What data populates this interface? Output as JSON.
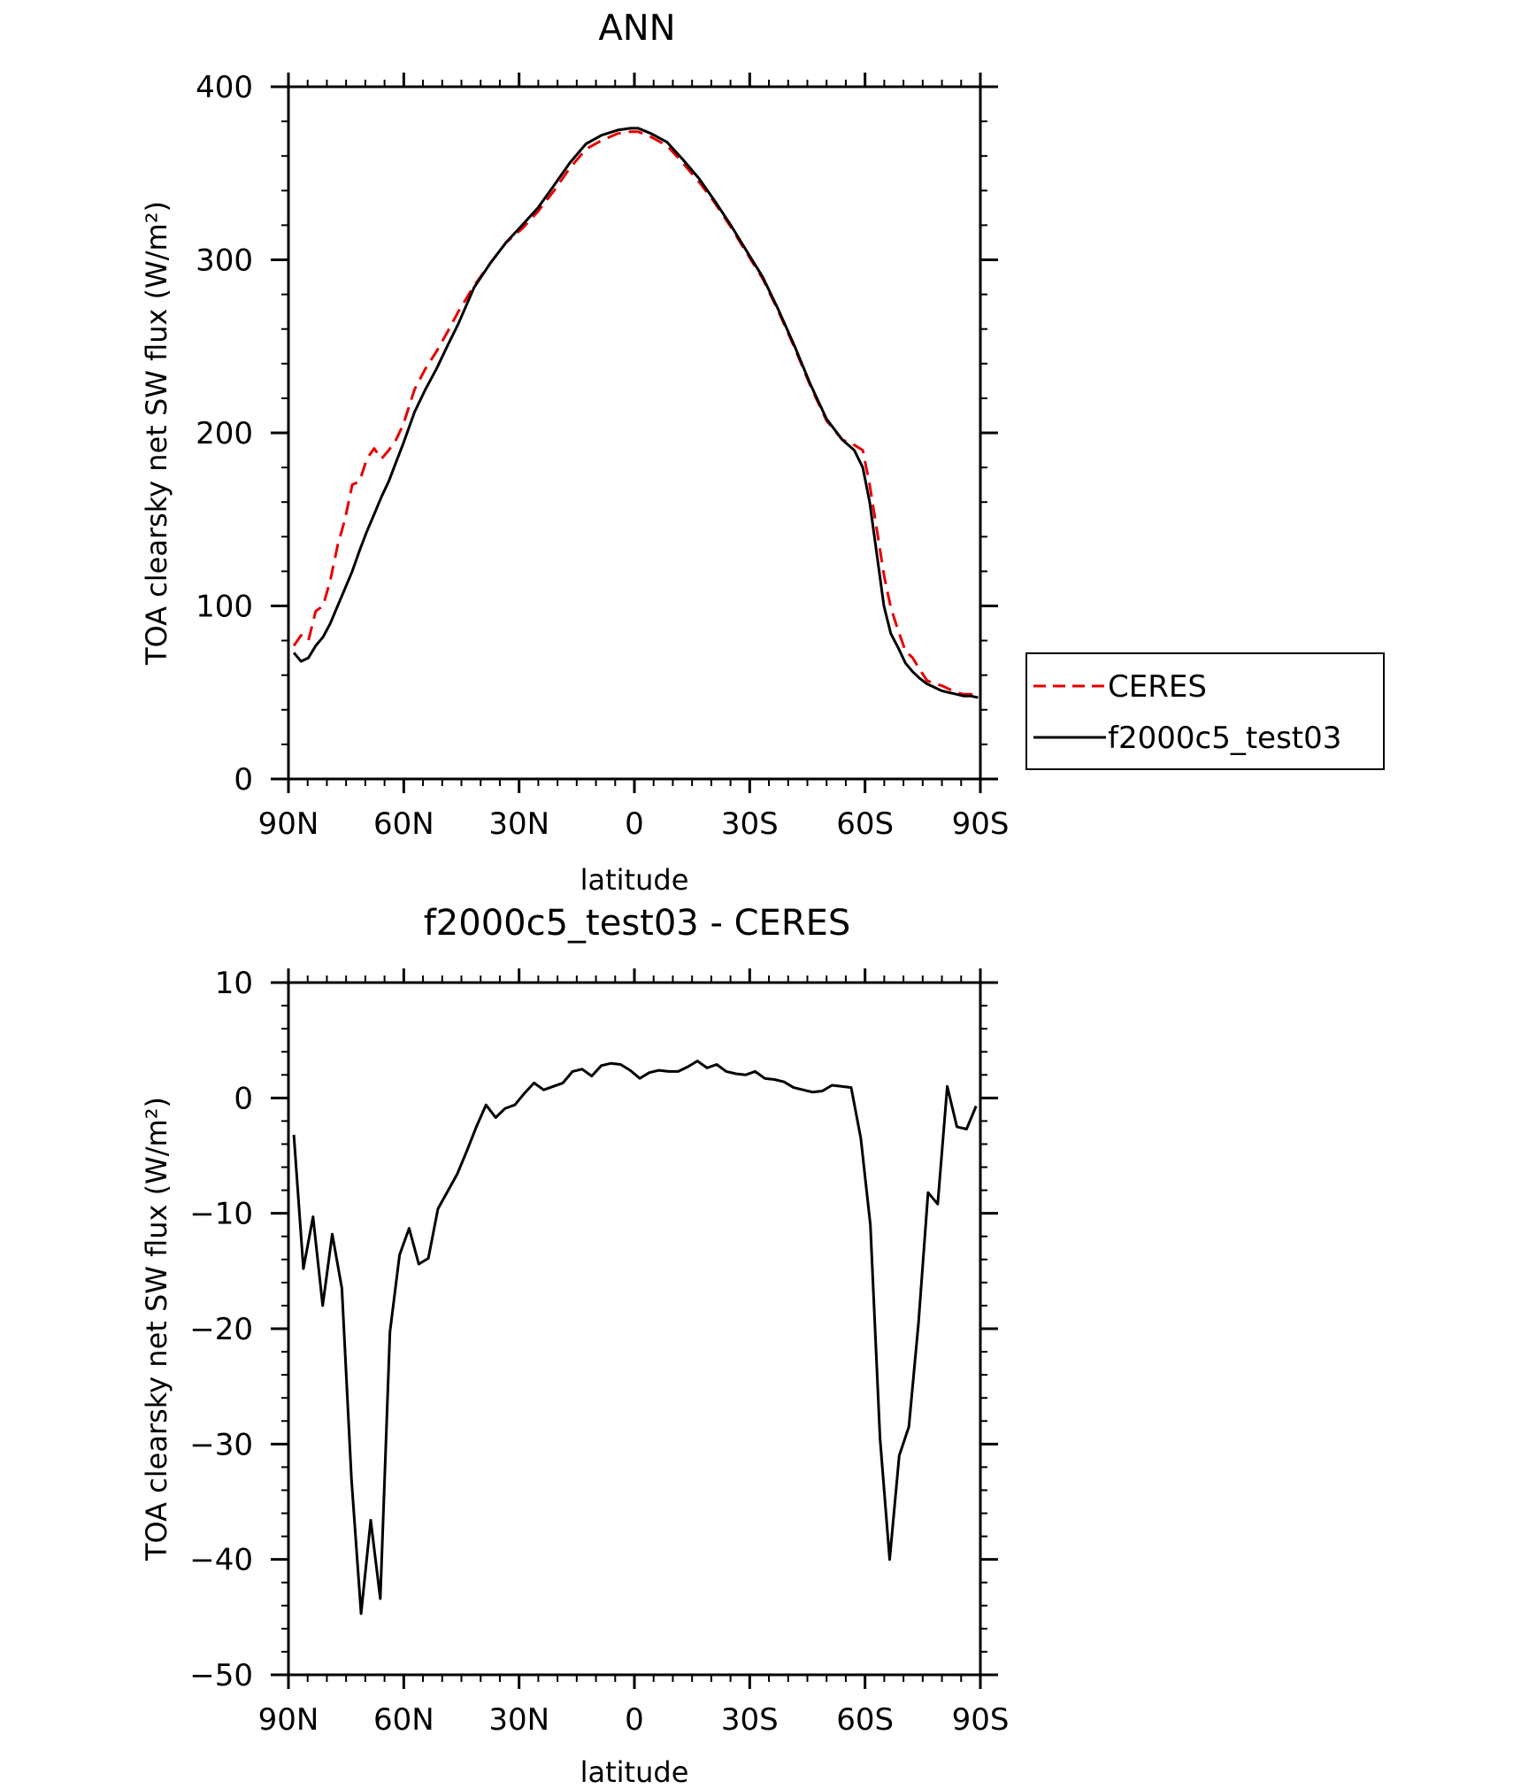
{
  "chart_data": [
    {
      "type": "line",
      "title": "ANN",
      "xlabel": "latitude",
      "ylabel": "TOA clearsky net SW flux (W/m²)",
      "xlim": [
        90,
        -90
      ],
      "ylim": [
        0,
        400
      ],
      "xticks": [
        90,
        60,
        30,
        0,
        -30,
        -60,
        -90
      ],
      "xtick_labels": [
        "90N",
        "60N",
        "30N",
        "0",
        "30S",
        "60S",
        "90S"
      ],
      "yticks": [
        0,
        100,
        200,
        300,
        400
      ],
      "ytick_labels": [
        "0",
        "100",
        "200",
        "300",
        "400"
      ],
      "legend_position": "right",
      "series": [
        {
          "name": "CERES",
          "color": "#e60000",
          "dash": "dashed",
          "x": [
            88.6,
            86.7,
            84.8,
            82.9,
            81.0,
            79.1,
            77.2,
            75.3,
            73.4,
            71.5,
            69.6,
            67.7,
            65.8,
            63.9,
            62.0,
            60.1,
            57.2,
            54.4,
            51.5,
            48.7,
            45.8,
            41.7,
            37.5,
            33.4,
            29.2,
            25.1,
            20.9,
            16.8,
            12.6,
            8.5,
            4.3,
            1.0,
            -1.0,
            -4.3,
            -8.5,
            -12.6,
            -16.8,
            -20.9,
            -25.1,
            -29.2,
            -33.4,
            -37.5,
            -41.7,
            -45.8,
            -50.0,
            -54.1,
            -57.2,
            -59.4,
            -61.2,
            -63.0,
            -64.9,
            -66.7,
            -68.6,
            -70.5,
            -72.4,
            -74.3,
            -76.1,
            -78.0,
            -79.9,
            -81.8,
            -83.7,
            -85.6,
            -87.5,
            -89.4
          ],
          "y": [
            77,
            83,
            80,
            97,
            100,
            115,
            135,
            150,
            170,
            172,
            185,
            191,
            185,
            190,
            196,
            205,
            225,
            237,
            247,
            258,
            270,
            285,
            298,
            310,
            318,
            328,
            340,
            353,
            364,
            369,
            373,
            374,
            374,
            371,
            366,
            356,
            345,
            333,
            319,
            304,
            289,
            270,
            249,
            227,
            207,
            196,
            193,
            190,
            170,
            145,
            118,
            99,
            86,
            74,
            70,
            63,
            57,
            55,
            54,
            52,
            50,
            49,
            49,
            48
          ]
        },
        {
          "name": "f2000c5_test03",
          "color": "#000000",
          "dash": "solid",
          "x": [
            88.6,
            86.7,
            84.8,
            82.9,
            81.0,
            79.1,
            77.2,
            75.3,
            73.4,
            71.5,
            69.6,
            67.7,
            65.8,
            63.9,
            62.0,
            60.1,
            57.2,
            54.4,
            51.5,
            48.7,
            45.8,
            41.7,
            37.5,
            33.4,
            29.2,
            25.1,
            20.9,
            16.8,
            12.6,
            8.5,
            4.3,
            1.0,
            -1.0,
            -4.3,
            -8.5,
            -12.6,
            -16.8,
            -20.9,
            -25.1,
            -29.2,
            -33.4,
            -37.5,
            -41.7,
            -45.8,
            -50.0,
            -54.1,
            -57.2,
            -59.4,
            -61.2,
            -63.0,
            -64.9,
            -66.7,
            -68.6,
            -70.5,
            -72.4,
            -74.3,
            -76.1,
            -78.0,
            -79.9,
            -81.8,
            -83.7,
            -85.6,
            -87.5,
            -89.4
          ],
          "y": [
            73,
            68,
            70,
            77,
            82,
            90,
            100,
            110,
            120,
            132,
            143,
            153,
            163,
            172,
            183,
            194,
            212,
            225,
            237,
            250,
            263,
            284,
            298,
            310,
            320,
            330,
            343,
            356,
            367,
            372,
            375,
            376,
            376,
            373,
            368,
            358,
            347,
            334,
            320,
            305,
            290,
            271,
            250,
            228,
            208,
            196,
            190,
            180,
            160,
            131,
            100,
            84,
            76,
            67,
            62,
            58,
            55,
            53,
            51,
            50,
            49,
            48,
            48,
            47
          ]
        }
      ]
    },
    {
      "type": "line",
      "title": "f2000c5_test03 - CERES",
      "xlabel": "latitude",
      "ylabel": "TOA clearsky net SW flux (W/m²)",
      "xlim": [
        90,
        -90
      ],
      "ylim": [
        -50,
        10
      ],
      "xticks": [
        90,
        60,
        30,
        0,
        -30,
        -60,
        -90
      ],
      "xtick_labels": [
        "90N",
        "60N",
        "30N",
        "0",
        "30S",
        "60S",
        "90S"
      ],
      "yticks": [
        10,
        0,
        -10,
        -20,
        -30,
        -40,
        -50
      ],
      "ytick_labels": [
        "10",
        "0",
        "−10",
        "−20",
        "−30",
        "−40",
        "−50"
      ],
      "series": [
        {
          "color": "#000000",
          "dash": "solid",
          "x": [
            88.6,
            86.1,
            83.6,
            81.1,
            78.6,
            76.1,
            73.6,
            71.1,
            68.6,
            66.1,
            63.6,
            61.1,
            58.6,
            56.1,
            53.6,
            51.1,
            48.6,
            46.1,
            43.6,
            41.1,
            38.6,
            36.1,
            33.6,
            31.1,
            28.6,
            26.1,
            23.6,
            21.1,
            18.6,
            16.1,
            13.6,
            11.1,
            8.6,
            6.1,
            3.6,
            1.1,
            -1.4,
            -3.9,
            -6.4,
            -8.9,
            -11.4,
            -13.9,
            -16.4,
            -18.9,
            -21.4,
            -23.9,
            -26.4,
            -28.9,
            -31.4,
            -33.9,
            -36.4,
            -38.9,
            -41.4,
            -43.9,
            -46.4,
            -48.9,
            -51.4,
            -53.9,
            -56.4,
            -58.9,
            -61.4,
            -63.9,
            -66.4,
            -68.9,
            -71.4,
            -73.9,
            -76.4,
            -78.9,
            -81.4,
            -83.9,
            -86.4,
            -88.9
          ],
          "y": [
            -3.2,
            -14.8,
            -10.3,
            -18.0,
            -11.8,
            -16.5,
            -33.0,
            -44.7,
            -36.6,
            -43.4,
            -20.3,
            -13.6,
            -11.3,
            -14.4,
            -13.9,
            -9.6,
            -8.1,
            -6.6,
            -4.6,
            -2.5,
            -0.6,
            -1.7,
            -0.9,
            -0.6,
            0.4,
            1.3,
            0.7,
            1.0,
            1.3,
            2.3,
            2.5,
            1.9,
            2.8,
            3.0,
            2.9,
            2.4,
            1.7,
            2.2,
            2.4,
            2.3,
            2.3,
            2.7,
            3.2,
            2.6,
            2.9,
            2.3,
            2.1,
            2.0,
            2.3,
            1.7,
            1.6,
            1.4,
            0.9,
            0.7,
            0.5,
            0.6,
            1.1,
            1.0,
            0.9,
            -3.5,
            -11.0,
            -29.5,
            -40.0,
            -31.0,
            -28.5,
            -19.5,
            -8.2,
            -9.2,
            1.0,
            -2.5,
            -2.7,
            -0.7
          ]
        }
      ]
    }
  ]
}
